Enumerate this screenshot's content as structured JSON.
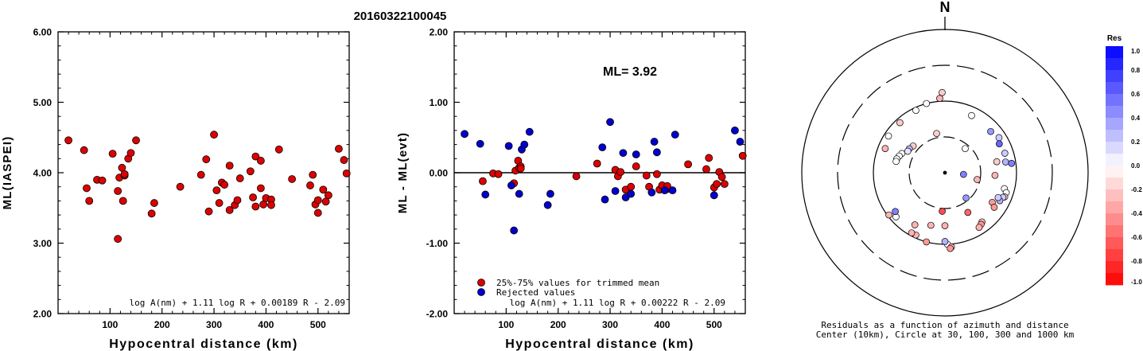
{
  "title": "20160322100045",
  "chart_data": [
    {
      "type": "scatter",
      "xlabel": "Hypocentral distance (km)",
      "ylabel": "ML(IASPEI)",
      "xlim": [
        0,
        560
      ],
      "ylim": [
        2.0,
        6.0
      ],
      "x_ticks": [
        "100",
        "200",
        "300",
        "400",
        "500"
      ],
      "y_ticks": [
        "2.00",
        "3.00",
        "4.00",
        "5.00",
        "6.00"
      ],
      "formula": "log A(nm) + 1.11 log R + 0.00189 R - 2.09",
      "marker_color": "#dd0000",
      "points": [
        [
          20,
          4.46
        ],
        [
          50,
          4.32
        ],
        [
          55,
          3.78
        ],
        [
          60,
          3.6
        ],
        [
          75,
          3.9
        ],
        [
          85,
          3.89
        ],
        [
          105,
          4.27
        ],
        [
          115,
          3.74
        ],
        [
          115,
          3.06
        ],
        [
          118,
          3.93
        ],
        [
          123,
          4.07
        ],
        [
          125,
          3.6
        ],
        [
          128,
          3.96
        ],
        [
          128,
          3.98
        ],
        [
          135,
          4.2
        ],
        [
          140,
          4.28
        ],
        [
          150,
          4.46
        ],
        [
          180,
          3.42
        ],
        [
          185,
          3.57
        ],
        [
          235,
          3.8
        ],
        [
          275,
          3.97
        ],
        [
          285,
          4.19
        ],
        [
          290,
          3.45
        ],
        [
          300,
          4.54
        ],
        [
          305,
          3.75
        ],
        [
          310,
          3.57
        ],
        [
          315,
          3.86
        ],
        [
          320,
          3.83
        ],
        [
          330,
          3.47
        ],
        [
          330,
          4.1
        ],
        [
          340,
          3.54
        ],
        [
          345,
          3.61
        ],
        [
          350,
          3.92
        ],
        [
          370,
          4.02
        ],
        [
          375,
          3.65
        ],
        [
          380,
          3.52
        ],
        [
          380,
          4.23
        ],
        [
          390,
          4.17
        ],
        [
          390,
          3.78
        ],
        [
          395,
          3.55
        ],
        [
          400,
          3.64
        ],
        [
          410,
          3.62
        ],
        [
          410,
          3.54
        ],
        [
          425,
          4.33
        ],
        [
          450,
          3.91
        ],
        [
          485,
          3.82
        ],
        [
          490,
          3.97
        ],
        [
          495,
          3.55
        ],
        [
          500,
          3.61
        ],
        [
          500,
          3.43
        ],
        [
          510,
          3.76
        ],
        [
          515,
          3.59
        ],
        [
          520,
          3.68
        ],
        [
          540,
          4.34
        ],
        [
          550,
          4.18
        ],
        [
          555,
          3.99
        ]
      ]
    },
    {
      "type": "scatter",
      "xlabel": "Hypocentral distance (km)",
      "ylabel": "ML - ML(evt)",
      "xlim": [
        0,
        560
      ],
      "ylim": [
        -2.0,
        2.0
      ],
      "x_ticks": [
        "100",
        "200",
        "300",
        "400",
        "500"
      ],
      "y_ticks": [
        "-2.00",
        "-1.00",
        "0.00",
        "1.00",
        "2.00"
      ],
      "annotation": "ML= 3.92",
      "formula": "log A(nm) + 1.11 log R + 0.00222 R - 2.09",
      "legend": [
        "25%-75% values for trimmed mean",
        "Rejected values"
      ],
      "series": [
        {
          "name": "25%-75% values for trimmed mean",
          "color": "#dd0000",
          "points": [
            [
              55,
              -0.12
            ],
            [
              75,
              -0.01
            ],
            [
              85,
              -0.02
            ],
            [
              115,
              -0.15
            ],
            [
              118,
              0.03
            ],
            [
              123,
              0.17
            ],
            [
              125,
              0.07
            ],
            [
              128,
              0.09
            ],
            [
              128,
              0.06
            ],
            [
              235,
              -0.05
            ],
            [
              275,
              0.13
            ],
            [
              310,
              0.04
            ],
            [
              315,
              -0.05
            ],
            [
              320,
              0.01
            ],
            [
              330,
              -0.24
            ],
            [
              340,
              -0.2
            ],
            [
              350,
              0.09
            ],
            [
              370,
              -0.04
            ],
            [
              375,
              -0.2
            ],
            [
              390,
              -0.02
            ],
            [
              395,
              -0.24
            ],
            [
              400,
              -0.18
            ],
            [
              410,
              -0.23
            ],
            [
              410,
              -0.19
            ],
            [
              450,
              0.12
            ],
            [
              485,
              0.05
            ],
            [
              490,
              0.21
            ],
            [
              500,
              -0.21
            ],
            [
              505,
              -0.16
            ],
            [
              510,
              0.01
            ],
            [
              515,
              -0.06
            ],
            [
              520,
              -0.16
            ],
            [
              555,
              0.24
            ]
          ]
        },
        {
          "name": "Rejected values",
          "color": "#0000cc",
          "points": [
            [
              20,
              0.55
            ],
            [
              50,
              0.41
            ],
            [
              60,
              -0.31
            ],
            [
              105,
              0.38
            ],
            [
              110,
              -0.18
            ],
            [
              115,
              -0.82
            ],
            [
              125,
              -0.3
            ],
            [
              130,
              0.33
            ],
            [
              135,
              0.4
            ],
            [
              145,
              0.58
            ],
            [
              180,
              -0.46
            ],
            [
              185,
              -0.3
            ],
            [
              285,
              0.36
            ],
            [
              290,
              -0.38
            ],
            [
              300,
              0.72
            ],
            [
              310,
              -0.26
            ],
            [
              325,
              0.28
            ],
            [
              330,
              -0.35
            ],
            [
              340,
              -0.3
            ],
            [
              350,
              0.26
            ],
            [
              380,
              -0.28
            ],
            [
              385,
              0.44
            ],
            [
              390,
              0.29
            ],
            [
              405,
              -0.25
            ],
            [
              420,
              -0.25
            ],
            [
              425,
              0.54
            ],
            [
              500,
              -0.32
            ],
            [
              540,
              0.6
            ],
            [
              550,
              0.44
            ]
          ]
        }
      ]
    },
    {
      "type": "scatter",
      "title": "N",
      "subtitle": "Residuals as a function of azimuth and distance",
      "caption": "Center (10km), Circle at 30, 100, 300 and 1000 km",
      "colorbar": {
        "label": "Res",
        "ticks": [
          "1.0",
          "0.8",
          "0.6",
          "0.4",
          "0.2",
          "0.0",
          "-0.2",
          "-0.4",
          "-0.6",
          "-0.8",
          "-1.0"
        ],
        "range": [
          -1.0,
          1.0
        ]
      },
      "stations": [
        {
          "az": 356,
          "dist": 520,
          "res": -0.3
        },
        {
          "az": 358,
          "dist": 560,
          "res": -0.2
        },
        {
          "az": 345,
          "dist": 500,
          "res": 0.0
        },
        {
          "az": 335,
          "dist": 480,
          "res": 0.0
        },
        {
          "az": 318,
          "dist": 470,
          "res": -0.2
        },
        {
          "az": 25,
          "dist": 440,
          "res": 0.0
        },
        {
          "az": 348,
          "dist": 280,
          "res": -0.2
        },
        {
          "az": 310,
          "dist": 290,
          "res": -0.2
        },
        {
          "az": 304,
          "dist": 300,
          "res": 0.3
        },
        {
          "az": 300,
          "dist": 300,
          "res": 0.1
        },
        {
          "az": 292,
          "dist": 450,
          "res": -0.3
        },
        {
          "az": 303,
          "dist": 470,
          "res": 0.0
        },
        {
          "az": 294,
          "dist": 330,
          "res": 0.0
        },
        {
          "az": 290,
          "dist": 340,
          "res": 0.0
        },
        {
          "az": 286,
          "dist": 350,
          "res": 0.0
        },
        {
          "az": 283,
          "dist": 350,
          "res": 0.0
        },
        {
          "az": 48,
          "dist": 430,
          "res": 0.4
        },
        {
          "az": 57,
          "dist": 450,
          "res": 0.2
        },
        {
          "az": 62,
          "dist": 430,
          "res": 0.6
        },
        {
          "az": 72,
          "dist": 440,
          "res": 0.2
        },
        {
          "az": 80,
          "dist": 430,
          "res": 0.3
        },
        {
          "az": 82,
          "dist": 470,
          "res": 0.5
        },
        {
          "az": 78,
          "dist": 370,
          "res": -0.2
        },
        {
          "az": 40,
          "dist": 220,
          "res": 0.0
        },
        {
          "az": 95,
          "dist": 130,
          "res": 0.5
        },
        {
          "az": 105,
          "dist": 430,
          "res": 0.0
        },
        {
          "az": 108,
          "dist": 450,
          "res": 0.0
        },
        {
          "az": 112,
          "dist": 450,
          "res": -0.2
        },
        {
          "az": 113,
          "dist": 440,
          "res": 0.2
        },
        {
          "az": 117,
          "dist": 430,
          "res": 0.3
        },
        {
          "az": 115,
          "dist": 410,
          "res": 0.2
        },
        {
          "az": 122,
          "dist": 390,
          "res": -0.4
        },
        {
          "az": 125,
          "dist": 420,
          "res": -0.4
        },
        {
          "az": 150,
          "dist": 320,
          "res": -0.6
        },
        {
          "az": 143,
          "dist": 430,
          "res": -0.3
        },
        {
          "az": 145,
          "dist": 440,
          "res": -0.4
        },
        {
          "az": 148,
          "dist": 450,
          "res": -0.3
        },
        {
          "az": 102,
          "dist": 230,
          "res": -0.3
        },
        {
          "az": 140,
          "dist": 230,
          "res": 0.4
        },
        {
          "az": 178,
          "dist": 500,
          "res": 0.0
        },
        {
          "az": 175,
          "dist": 520,
          "res": -0.3
        },
        {
          "az": 176,
          "dist": 530,
          "res": -0.4
        },
        {
          "az": 180,
          "dist": 480,
          "res": 0.3
        },
        {
          "az": 195,
          "dist": 500,
          "res": -0.4
        },
        {
          "az": 205,
          "dist": 480,
          "res": -0.3
        },
        {
          "az": 209,
          "dist": 480,
          "res": -0.3
        },
        {
          "az": 228,
          "dist": 460,
          "res": 0.0
        },
        {
          "az": 232,
          "dist": 440,
          "res": 0.5
        },
        {
          "az": 210,
          "dist": 420,
          "res": -0.3
        },
        {
          "az": 195,
          "dist": 380,
          "res": -0.3
        },
        {
          "az": 184,
          "dist": 270,
          "res": -0.7
        },
        {
          "az": 233,
          "dist": 490,
          "res": -0.3
        },
        {
          "az": 180,
          "dist": 370,
          "res": -0.3
        },
        {
          "az": 93,
          "dist": 350,
          "res": -0.3
        }
      ]
    }
  ]
}
